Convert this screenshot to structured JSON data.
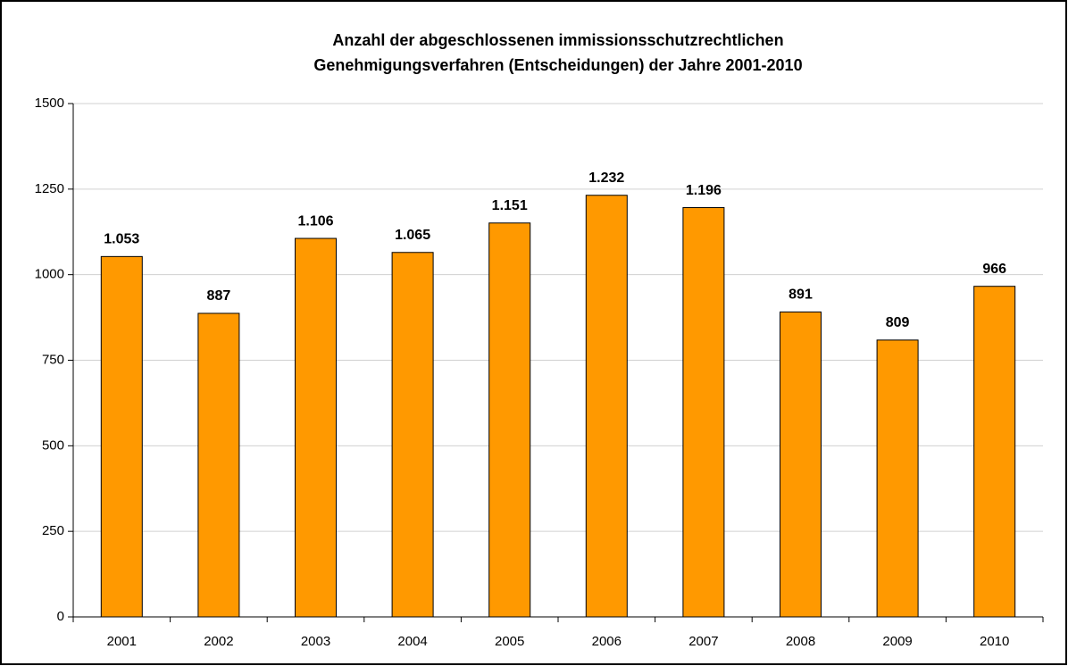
{
  "chart_data": {
    "type": "bar",
    "title": [
      "Anzahl der abgeschlossenen immissionsschutzrechtlichen",
      "Genehmigungsverfahren (Entscheidungen) der Jahre 2001-2010"
    ],
    "categories": [
      "2001",
      "2002",
      "2003",
      "2004",
      "2005",
      "2006",
      "2007",
      "2008",
      "2009",
      "2010"
    ],
    "values": [
      1053,
      887,
      1106,
      1065,
      1151,
      1232,
      1196,
      891,
      809,
      966
    ],
    "value_labels": [
      "1.053",
      "887",
      "1.106",
      "1.065",
      "1.151",
      "1.232",
      "1.196",
      "891",
      "809",
      "966"
    ],
    "color": "#ff9900",
    "ylim": [
      0,
      1500
    ],
    "yticks": [
      0,
      250,
      500,
      750,
      1000,
      1250,
      1500
    ],
    "grid": true
  }
}
